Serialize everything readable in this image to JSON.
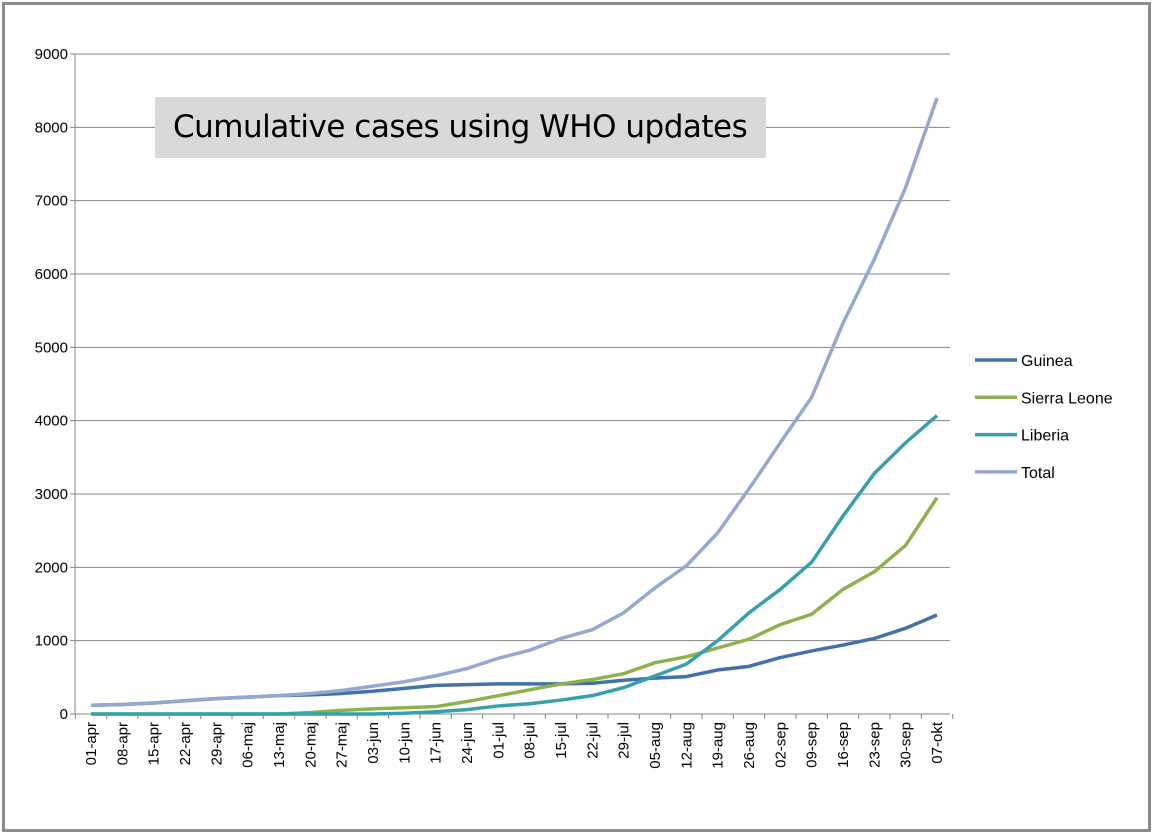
{
  "chart_data": {
    "type": "line",
    "title": "Cumulative cases using WHO updates",
    "xlabel": "",
    "ylabel": "",
    "ylim": [
      0,
      9000
    ],
    "yticks": [
      0,
      1000,
      2000,
      3000,
      4000,
      5000,
      6000,
      7000,
      8000,
      9000
    ],
    "grid": true,
    "legend_position": "right",
    "categories": [
      "01-apr",
      "08-apr",
      "15-apr",
      "22-apr",
      "29-apr",
      "06-maj",
      "13-maj",
      "20-maj",
      "27-maj",
      "03-jun",
      "10-jun",
      "17-jun",
      "24-jun",
      "01-jul",
      "08-jul",
      "15-jul",
      "22-jul",
      "29-jul",
      "05-aug",
      "12-aug",
      "19-aug",
      "26-aug",
      "02-sep",
      "09-sep",
      "16-sep",
      "23-sep",
      "30-sep",
      "07-okt"
    ],
    "series": [
      {
        "name": "Guinea",
        "color": "#4471a8",
        "values": [
          120,
          130,
          150,
          180,
          210,
          230,
          250,
          260,
          280,
          310,
          350,
          390,
          400,
          410,
          410,
          410,
          420,
          460,
          490,
          510,
          600,
          650,
          770,
          860,
          940,
          1030,
          1170,
          1350
        ]
      },
      {
        "name": "Sierra Leone",
        "color": "#8eb24b",
        "values": [
          0,
          0,
          0,
          0,
          0,
          0,
          0,
          20,
          50,
          70,
          85,
          100,
          170,
          250,
          330,
          410,
          470,
          550,
          700,
          780,
          900,
          1020,
          1220,
          1360,
          1700,
          1940,
          2300,
          2950
        ]
      },
      {
        "name": "Liberia",
        "color": "#36a0ad",
        "values": [
          0,
          0,
          0,
          0,
          0,
          0,
          0,
          0,
          0,
          0,
          10,
          30,
          60,
          110,
          140,
          190,
          250,
          360,
          520,
          680,
          1000,
          1380,
          1700,
          2070,
          2700,
          3280,
          3700,
          4070
        ]
      },
      {
        "name": "Total",
        "color": "#95a9d0",
        "values": [
          120,
          130,
          150,
          180,
          210,
          230,
          250,
          280,
          320,
          380,
          440,
          520,
          620,
          760,
          870,
          1030,
          1150,
          1380,
          1720,
          2020,
          2470,
          3070,
          3700,
          4320,
          5330,
          6200,
          7180,
          8400
        ]
      }
    ]
  }
}
